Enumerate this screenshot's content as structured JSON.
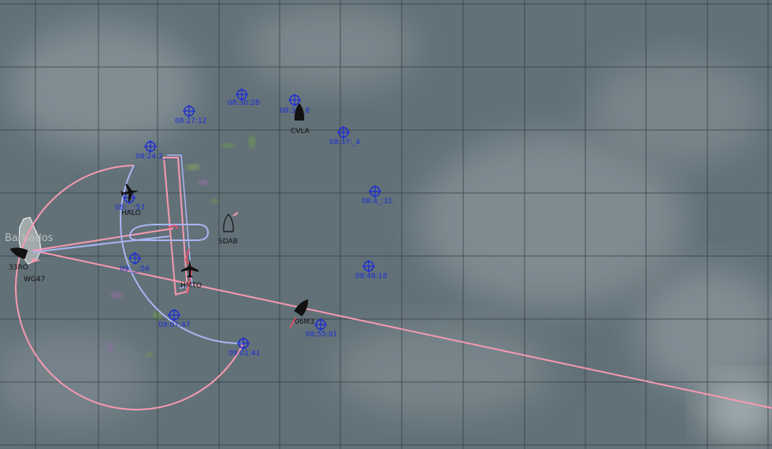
{
  "map": {
    "island": "Barbados",
    "colors": {
      "ocean": "#627178",
      "grid": "#2f3a3e",
      "track_pink": "#f59ab0",
      "track_blue": "#a9b5f2",
      "track_red": "#e05068",
      "waypoint": "#1a2bd8",
      "platform": "#111111"
    },
    "waypoints": [
      {
        "time": "08:30:28"
      },
      {
        "time": "08:3_:_8"
      },
      {
        "time": "08:27:12"
      },
      {
        "time": "08:37:_4"
      },
      {
        "time": "08:24:2_"
      },
      {
        "time": "08:4_:31"
      },
      {
        "time": "08:__:53"
      },
      {
        "time": "09:__:56"
      },
      {
        "time": "08:48:18"
      },
      {
        "time": "09:07:47"
      },
      {
        "time": "08:55:01"
      },
      {
        "time": "09:01:41"
      }
    ],
    "platforms": [
      {
        "id": "CVLA",
        "kind": "ship"
      },
      {
        "id": "HALO",
        "kind": "aircraft"
      },
      {
        "id": "SDAB",
        "kind": "ship"
      },
      {
        "id": "HMTO",
        "kind": "aircraft"
      },
      {
        "id": "06M3",
        "kind": "ship"
      },
      {
        "id": "33RO",
        "kind": "ship"
      },
      {
        "id": "WG47",
        "kind": "glider"
      }
    ]
  }
}
